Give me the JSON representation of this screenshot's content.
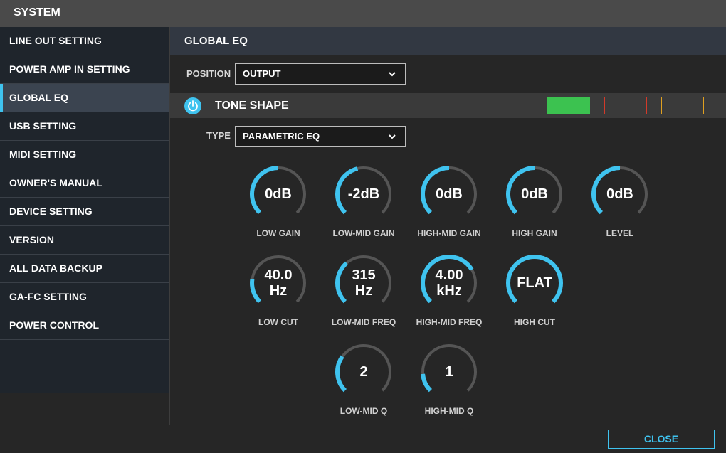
{
  "window": {
    "title": "SYSTEM"
  },
  "sidebar": {
    "items": [
      {
        "label": "LINE OUT SETTING",
        "active": false
      },
      {
        "label": "POWER AMP IN SETTING",
        "active": false
      },
      {
        "label": "GLOBAL EQ",
        "active": true
      },
      {
        "label": "USB SETTING",
        "active": false
      },
      {
        "label": "MIDI SETTING",
        "active": false
      },
      {
        "label": "OWNER'S MANUAL",
        "active": false
      },
      {
        "label": "DEVICE SETTING",
        "active": false
      },
      {
        "label": "VERSION",
        "active": false
      },
      {
        "label": "ALL DATA BACKUP",
        "active": false
      },
      {
        "label": "GA-FC SETTING",
        "active": false
      },
      {
        "label": "POWER CONTROL",
        "active": false
      }
    ]
  },
  "content": {
    "title": "GLOBAL EQ",
    "position": {
      "label": "POSITION",
      "value": "OUTPUT"
    },
    "tone_shape": {
      "title": "TONE SHAPE",
      "power_icon": "power-icon",
      "swatches": [
        {
          "name": "green",
          "color": "#3cc250",
          "filled": true
        },
        {
          "name": "red",
          "color": "#d23a2a",
          "filled": false
        },
        {
          "name": "yellow",
          "color": "#e0a020",
          "filled": false
        }
      ]
    },
    "type": {
      "label": "TYPE",
      "value": "PARAMETRIC EQ"
    },
    "knobs": [
      {
        "label": "LOW GAIN",
        "value": "0dB",
        "level": 0.5
      },
      {
        "label": "LOW-MID GAIN",
        "value": "-2dB",
        "level": 0.45
      },
      {
        "label": "HIGH-MID GAIN",
        "value": "0dB",
        "level": 0.5
      },
      {
        "label": "HIGH GAIN",
        "value": "0dB",
        "level": 0.5
      },
      {
        "label": "LEVEL",
        "value": "0dB",
        "level": 0.5
      },
      {
        "label": "LOW CUT",
        "value": "40.0\nHz",
        "level": 0.2
      },
      {
        "label": "LOW-MID FREQ",
        "value": "315\nHz",
        "level": 0.35
      },
      {
        "label": "HIGH-MID FREQ",
        "value": "4.00\nkHz",
        "level": 0.72
      },
      {
        "label": "HIGH CUT",
        "value": "FLAT",
        "level": 1.0
      },
      {
        "label": "LOW-MID Q",
        "value": "2",
        "level": 0.3
      },
      {
        "label": "HIGH-MID Q",
        "value": "1",
        "level": 0.15
      }
    ]
  },
  "footer": {
    "close_label": "CLOSE"
  },
  "colors": {
    "accent": "#3fc3ef",
    "track": "#555555"
  }
}
